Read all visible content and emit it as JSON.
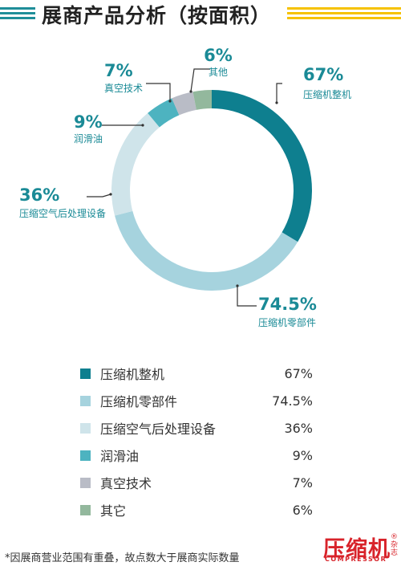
{
  "header": {
    "title": "展商产品分析（按面积）"
  },
  "colors": {
    "accent_left": "#1f8e99",
    "accent_right": "#f6c200"
  },
  "chart_data": {
    "type": "pie",
    "donut": true,
    "categories": [
      "压缩机整机",
      "压缩机零部件",
      "压缩空气后处理设备",
      "润滑油",
      "真空技术",
      "其他"
    ],
    "value_labels": [
      "67%",
      "74.5%",
      "36%",
      "9%",
      "7%",
      "6%"
    ],
    "values": [
      67,
      74.5,
      36,
      9,
      7,
      6
    ],
    "colors": [
      "#0e7f8f",
      "#a6d3de",
      "#cfe4ea",
      "#4db3c0",
      "#b9bcc6",
      "#93b89d"
    ]
  },
  "callouts": [
    {
      "value": "67%",
      "label": "压缩机整机"
    },
    {
      "value": "74.5%",
      "label": "压缩机零部件"
    },
    {
      "value": "36%",
      "label": "压缩空气后处理设备"
    },
    {
      "value": "9%",
      "label": "润滑油"
    },
    {
      "value": "7%",
      "label": "真空技术"
    },
    {
      "value": "6%",
      "label": "其他"
    }
  ],
  "legend": [
    {
      "name": "压缩机整机",
      "value": "67%"
    },
    {
      "name": "压缩机零部件",
      "value": "74.5%"
    },
    {
      "name": "压缩空气后处理设备",
      "value": "36%"
    },
    {
      "name": "润滑油",
      "value": "9%"
    },
    {
      "name": "真空技术",
      "value": "7%"
    },
    {
      "name": "其它",
      "value": "6%"
    }
  ],
  "footnote": "*因展商营业范围有重叠，故点数大于展商实际数量",
  "logo": {
    "main": "压缩机",
    "side": "杂志",
    "sub": "COMPRESSOR",
    "mark": "®"
  }
}
